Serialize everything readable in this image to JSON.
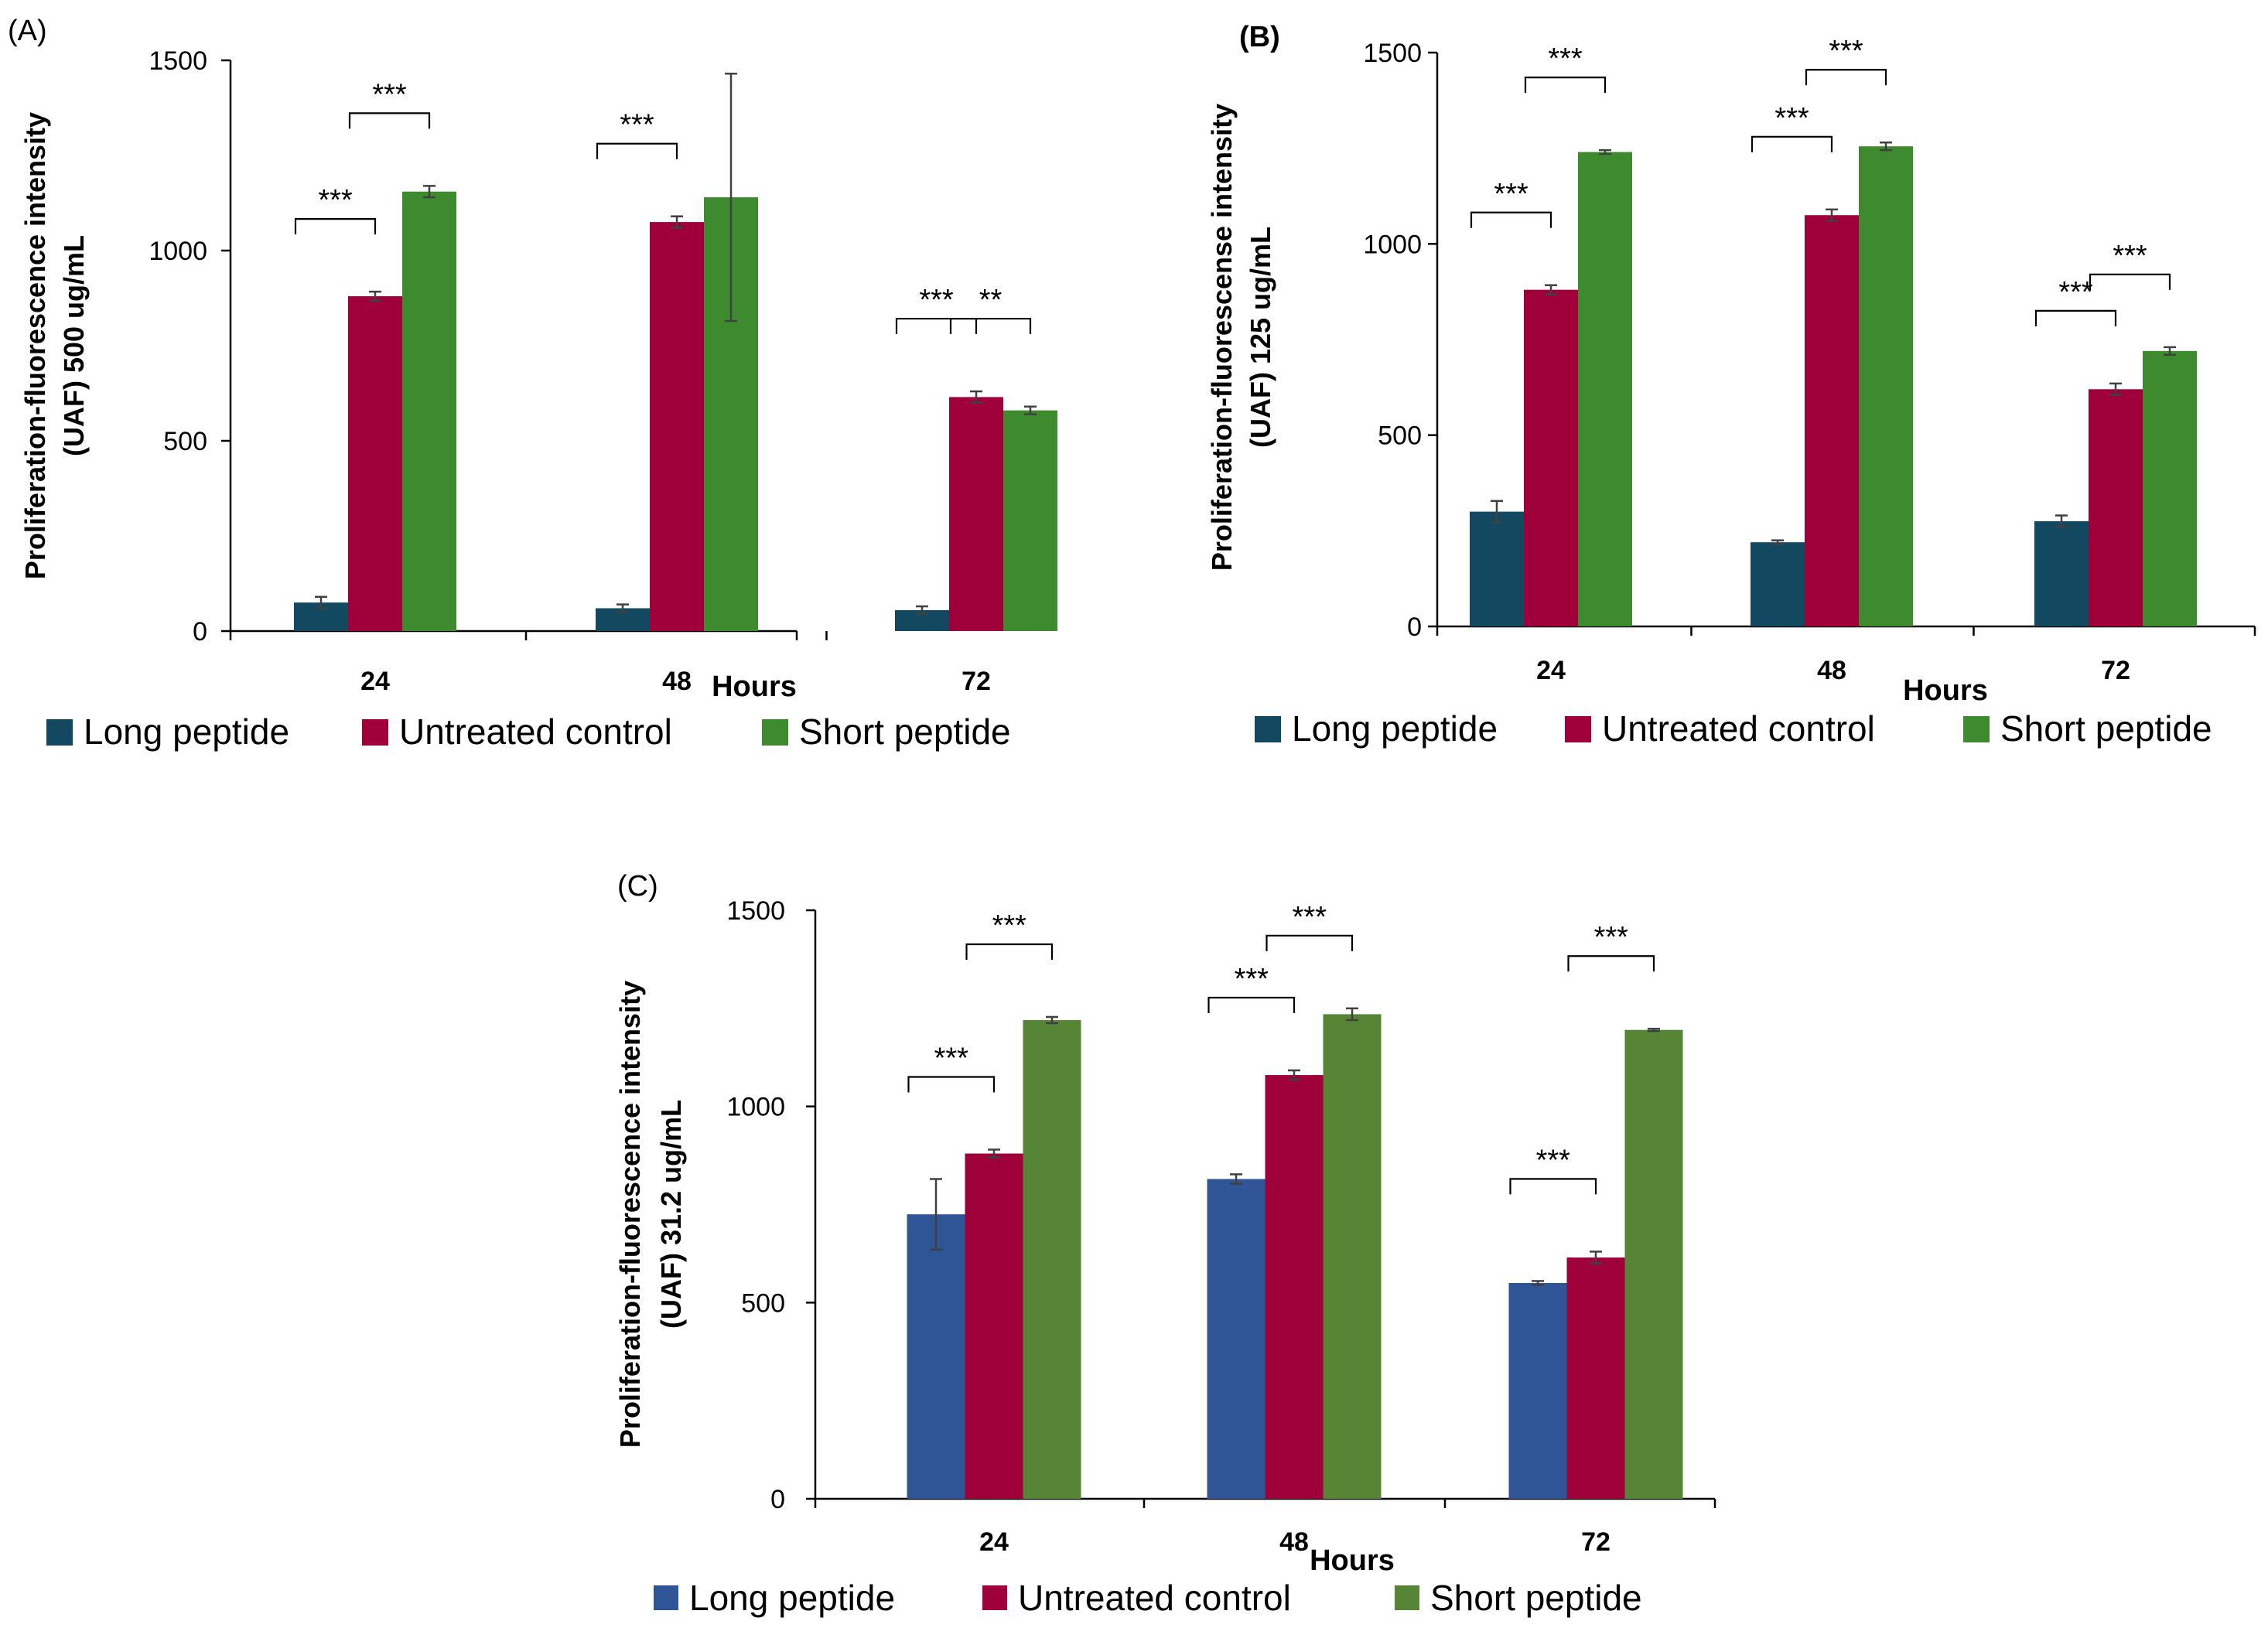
{
  "figure": {
    "legend_labels": [
      "Long peptide",
      "Untreated control",
      "Short peptide"
    ],
    "colors": {
      "A_B": [
        "#134960",
        "#A00039",
        "#3E8B2F"
      ],
      "C": [
        "#2F5597",
        "#A00039",
        "#568536"
      ],
      "error_bar": "#404040",
      "axis": "#000000"
    }
  },
  "chart_data": [
    {
      "panel_label": "(A)",
      "type": "bar",
      "categories": [
        "24",
        "48",
        "72"
      ],
      "xlabel": "Hours",
      "ylabel_lines": [
        "Proliferation-fluorescence intensity",
        "(UAF) 500 ug/mL"
      ],
      "ylim": [
        0,
        1500
      ],
      "yticks": [
        0,
        500,
        1000,
        1500
      ],
      "grid": false,
      "legend_position": "bottom",
      "series": [
        {
          "name": "Long peptide",
          "values": [
            75,
            60,
            55
          ],
          "errors": [
            15,
            10,
            10
          ]
        },
        {
          "name": "Untreated control",
          "values": [
            880,
            1075,
            615
          ],
          "errors": [
            12,
            15,
            15
          ]
        },
        {
          "name": "Short peptide",
          "values": [
            1155,
            1140,
            580
          ],
          "errors": [
            15,
            325,
            10
          ]
        }
      ],
      "significance": [
        {
          "category": "24",
          "from_series": 0,
          "to_series": 1,
          "label": "***"
        },
        {
          "category": "24",
          "from_series": 1,
          "to_series": 2,
          "label": "***"
        },
        {
          "category": "48",
          "from_series": 0,
          "to_series": 1,
          "label": "***"
        },
        {
          "category": "72",
          "from_series": 0,
          "to_series": 1,
          "label": "***"
        },
        {
          "category": "72",
          "from_series": 1,
          "to_series": 2,
          "label": "**"
        }
      ]
    },
    {
      "panel_label": "(B)",
      "type": "bar",
      "categories": [
        "24",
        "48",
        "72"
      ],
      "xlabel": "Hours",
      "ylabel_lines": [
        "Proliferation-fluorescense intensity",
        "(UAF) 125  ug/mL"
      ],
      "ylim": [
        0,
        1500
      ],
      "yticks": [
        0,
        500,
        1000,
        1500
      ],
      "grid": false,
      "legend_position": "bottom",
      "series": [
        {
          "name": "Long peptide",
          "values": [
            300,
            220,
            275
          ],
          "errors": [
            28,
            5,
            15
          ]
        },
        {
          "name": "Untreated control",
          "values": [
            880,
            1075,
            620
          ],
          "errors": [
            12,
            15,
            15
          ]
        },
        {
          "name": "Short peptide",
          "values": [
            1240,
            1255,
            720
          ],
          "errors": [
            5,
            10,
            10
          ]
        }
      ],
      "significance": [
        {
          "category": "24",
          "from_series": 0,
          "to_series": 1,
          "label": "***"
        },
        {
          "category": "24",
          "from_series": 1,
          "to_series": 2,
          "label": "***"
        },
        {
          "category": "48",
          "from_series": 0,
          "to_series": 1,
          "label": "***"
        },
        {
          "category": "48",
          "from_series": 1,
          "to_series": 2,
          "label": "***"
        },
        {
          "category": "72",
          "from_series": 0,
          "to_series": 1,
          "label": "***"
        },
        {
          "category": "72",
          "from_series": 1,
          "to_series": 2,
          "label": "***"
        }
      ]
    },
    {
      "panel_label": "(C)",
      "type": "bar",
      "categories": [
        "24",
        "48",
        "72"
      ],
      "xlabel": "Hours",
      "ylabel_lines": [
        "Proliferation-fluorescence intensity",
        "(UAF) 31.2  ug/mL"
      ],
      "ylim": [
        0,
        1500
      ],
      "yticks": [
        0,
        500,
        1000,
        1500
      ],
      "grid": false,
      "legend_position": "bottom",
      "series": [
        {
          "name": "Long peptide",
          "values": [
            725,
            815,
            550
          ],
          "errors": [
            90,
            12,
            5
          ]
        },
        {
          "name": "Untreated control",
          "values": [
            880,
            1080,
            615
          ],
          "errors": [
            10,
            12,
            15
          ]
        },
        {
          "name": "Short peptide",
          "values": [
            1220,
            1235,
            1195
          ],
          "errors": [
            8,
            15,
            3
          ]
        }
      ],
      "significance": [
        {
          "category": "24",
          "from_series": 0,
          "to_series": 1,
          "label": "***"
        },
        {
          "category": "24",
          "from_series": 1,
          "to_series": 2,
          "label": "***"
        },
        {
          "category": "48",
          "from_series": 0,
          "to_series": 1,
          "label": "***"
        },
        {
          "category": "48",
          "from_series": 1,
          "to_series": 2,
          "label": "***"
        },
        {
          "category": "72",
          "from_series": 0,
          "to_series": 1,
          "label": "***"
        },
        {
          "category": "72",
          "from_series": 1,
          "to_series": 2,
          "label": "***"
        }
      ]
    }
  ]
}
